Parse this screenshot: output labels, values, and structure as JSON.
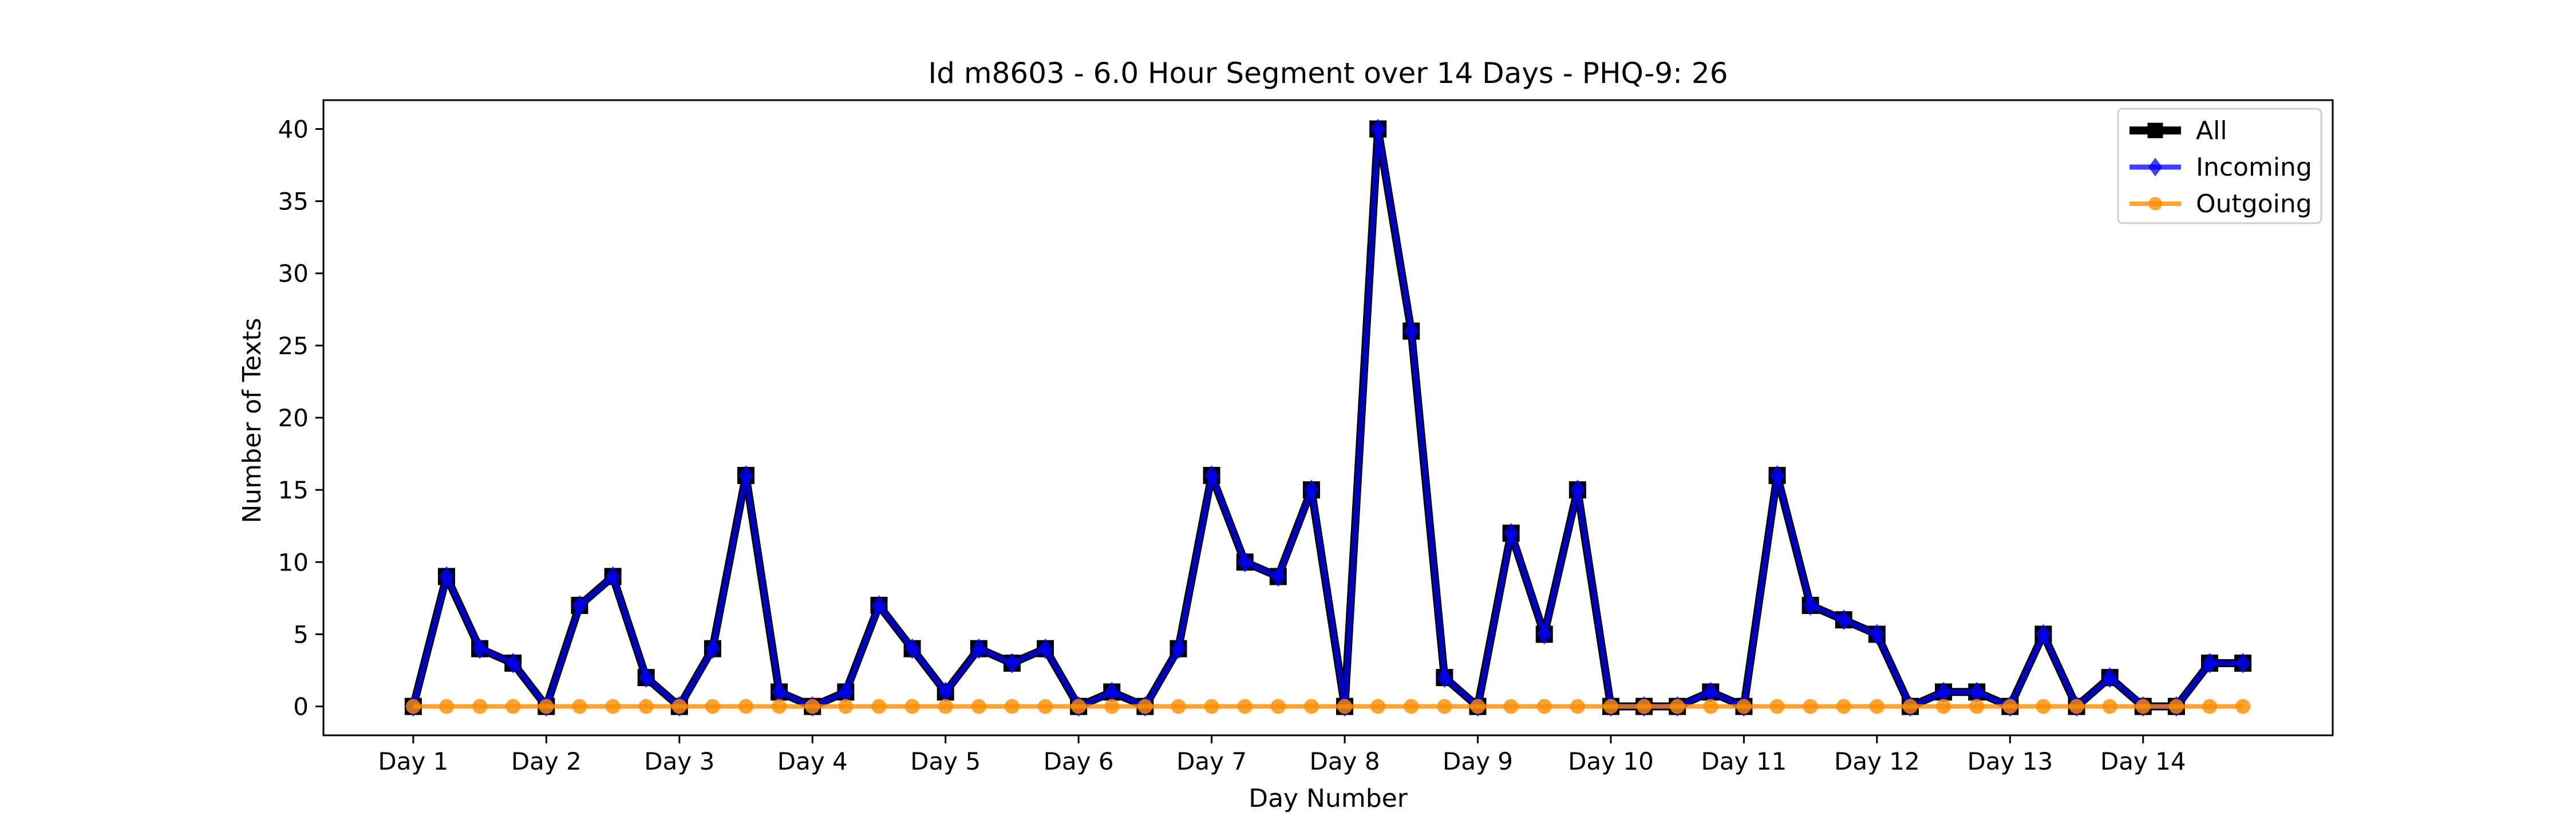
{
  "chart_data": {
    "type": "line",
    "title": "Id m8603 - 6.0 Hour Segment over 14 Days - PHQ-9: 26",
    "xlabel": "Day Number",
    "ylabel": "Number of Texts",
    "ylim": [
      -2,
      42
    ],
    "xlim": [
      -2.7,
      57.7
    ],
    "yticks": [
      0,
      5,
      10,
      15,
      20,
      25,
      30,
      35,
      40
    ],
    "xtick_positions": [
      0,
      4,
      8,
      12,
      16,
      20,
      24,
      28,
      32,
      36,
      40,
      44,
      48,
      52
    ],
    "xtick_labels": [
      "Day 1",
      "Day 2",
      "Day 3",
      "Day 4",
      "Day 5",
      "Day 6",
      "Day 7",
      "Day 8",
      "Day 9",
      "Day 10",
      "Day 11",
      "Day 12",
      "Day 13",
      "Day 14"
    ],
    "grid": false,
    "legend_position": "top-right",
    "series": [
      {
        "name": "All",
        "color": "#000000",
        "marker": "square",
        "values": [
          0,
          9,
          4,
          3,
          0,
          7,
          9,
          2,
          0,
          4,
          16,
          1,
          0,
          1,
          7,
          4,
          1,
          4,
          3,
          4,
          0,
          1,
          0,
          4,
          16,
          10,
          9,
          15,
          0,
          40,
          26,
          2,
          0,
          12,
          5,
          15,
          0,
          0,
          0,
          1,
          0,
          16,
          7,
          6,
          5,
          0,
          1,
          1,
          0,
          5,
          0,
          2,
          0,
          0,
          3,
          3
        ]
      },
      {
        "name": "Incoming",
        "color": "#0000ff",
        "marker": "diamond",
        "values": [
          0,
          9,
          4,
          3,
          0,
          7,
          9,
          2,
          0,
          4,
          16,
          1,
          0,
          1,
          7,
          4,
          1,
          4,
          3,
          4,
          0,
          1,
          0,
          4,
          16,
          10,
          9,
          15,
          0,
          40,
          26,
          2,
          0,
          12,
          5,
          15,
          0,
          0,
          0,
          1,
          0,
          16,
          7,
          6,
          5,
          0,
          1,
          1,
          0,
          5,
          0,
          2,
          0,
          0,
          3,
          3
        ]
      },
      {
        "name": "Outgoing",
        "color": "#ff8c00",
        "marker": "circle",
        "values": [
          0,
          0,
          0,
          0,
          0,
          0,
          0,
          0,
          0,
          0,
          0,
          0,
          0,
          0,
          0,
          0,
          0,
          0,
          0,
          0,
          0,
          0,
          0,
          0,
          0,
          0,
          0,
          0,
          0,
          0,
          0,
          0,
          0,
          0,
          0,
          0,
          0,
          0,
          0,
          0,
          0,
          0,
          0,
          0,
          0,
          0,
          0,
          0,
          0,
          0,
          0,
          0,
          0,
          0,
          0,
          0
        ]
      }
    ]
  }
}
